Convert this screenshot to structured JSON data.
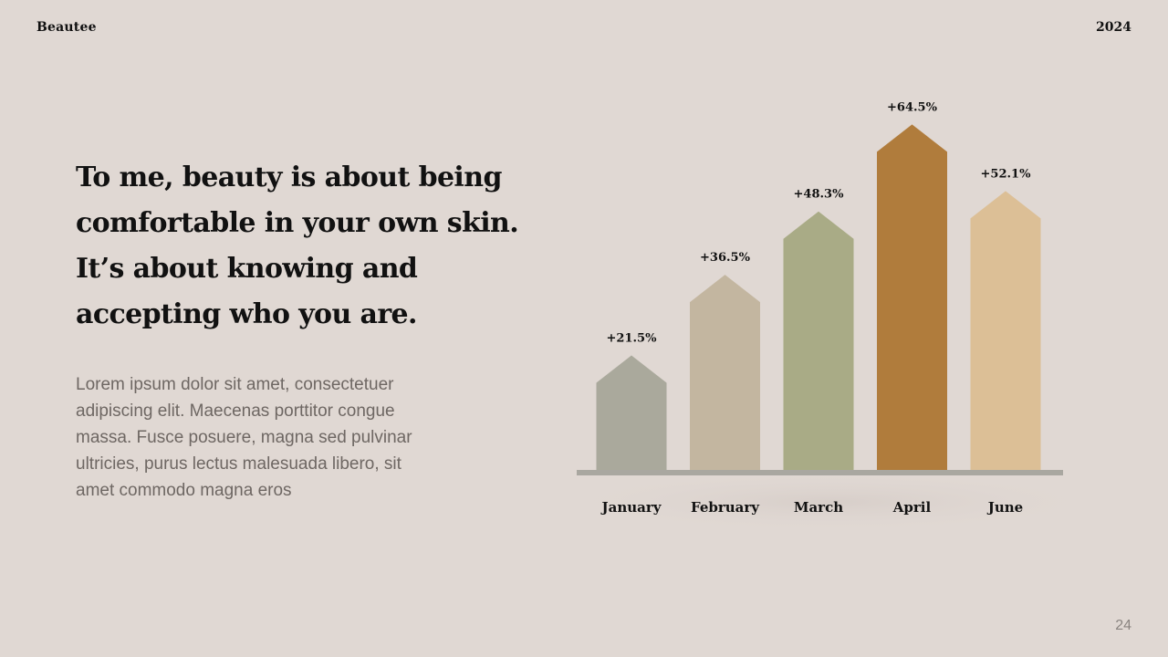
{
  "header": {
    "brand": "Beautee",
    "year": "2024"
  },
  "quote": "To me, beauty is about being comfortable in your own skin. It’s about knowing and accepting who you are.",
  "body_text": "Lorem ipsum dolor sit amet, consectetuer adipiscing elit. Maecenas porttitor congue massa. Fusce posuere, magna sed pulvinar ultricies, purus lectus malesuada libero, sit amet commodo magna eros",
  "page_number": "24",
  "chart_data": {
    "type": "bar",
    "title": "",
    "xlabel": "",
    "ylabel": "",
    "categories": [
      "January",
      "February",
      "March",
      "April",
      "June"
    ],
    "values": [
      21.5,
      36.5,
      48.3,
      64.5,
      52.1
    ],
    "data_labels": [
      "+21.5%",
      "+36.5%",
      "+48.3%",
      "+64.5%",
      "+52.1%"
    ],
    "ylim": [
      0,
      70
    ],
    "grid": false,
    "bar_shape": "pointed-top",
    "colors": [
      "#aaa99c",
      "#c3b6a0",
      "#a9ab86",
      "#b07c3c",
      "#dcbf96"
    ],
    "baseline_color": "#a9a7a0"
  }
}
